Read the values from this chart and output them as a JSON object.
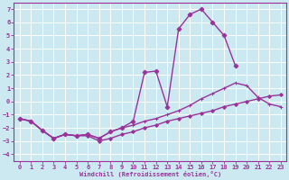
{
  "xlabel": "Windchill (Refroidissement éolien,°C)",
  "background_color": "#cce8f0",
  "grid_color": "#aaccdd",
  "line_color": "#993399",
  "xlim": [
    -0.5,
    23.5
  ],
  "ylim": [
    -4.5,
    7.5
  ],
  "xticks": [
    0,
    1,
    2,
    3,
    4,
    5,
    6,
    7,
    8,
    9,
    10,
    11,
    12,
    13,
    14,
    15,
    16,
    17,
    18,
    19,
    20,
    21,
    22,
    23
  ],
  "yticks": [
    -4,
    -3,
    -2,
    -1,
    0,
    1,
    2,
    3,
    4,
    5,
    6,
    7
  ],
  "series": [
    {
      "x": [
        0,
        1,
        2,
        3,
        4,
        5,
        6,
        7,
        8,
        9,
        10,
        11,
        12,
        13,
        14,
        15,
        16,
        17,
        18,
        19
      ],
      "y": [
        -1.3,
        -1.5,
        -2.2,
        -2.8,
        -2.5,
        -2.6,
        -2.5,
        -2.8,
        -2.3,
        -2.0,
        -1.5,
        2.2,
        2.3,
        -0.4,
        5.5,
        6.6,
        7.0,
        6.0,
        5.0,
        2.7
      ],
      "marker": "D",
      "markersize": 2.5,
      "linewidth": 1.0,
      "linestyle": "-"
    },
    {
      "x": [
        0,
        1,
        2,
        3,
        4,
        5,
        6,
        7,
        8,
        9,
        10,
        11,
        12,
        13,
        14,
        15,
        16,
        17,
        18,
        19,
        20,
        21,
        22,
        23
      ],
      "y": [
        -1.3,
        -1.5,
        -2.2,
        -2.8,
        -2.5,
        -2.6,
        -2.5,
        -2.8,
        -2.3,
        -2.0,
        -1.8,
        -1.5,
        -1.3,
        -1.0,
        -0.7,
        -0.3,
        0.2,
        0.6,
        1.0,
        1.4,
        1.2,
        0.3,
        -0.2,
        -0.4
      ],
      "marker": "+",
      "markersize": 3.5,
      "linewidth": 1.0,
      "linestyle": "-"
    },
    {
      "x": [
        0,
        1,
        2,
        3,
        4,
        5,
        6,
        7,
        8,
        9,
        10,
        11,
        12,
        13,
        14,
        15,
        16,
        17,
        18,
        19,
        20,
        21,
        22,
        23
      ],
      "y": [
        -1.3,
        -1.5,
        -2.2,
        -2.8,
        -2.5,
        -2.6,
        -2.6,
        -3.0,
        -2.8,
        -2.5,
        -2.3,
        -2.0,
        -1.8,
        -1.5,
        -1.3,
        -1.1,
        -0.9,
        -0.7,
        -0.4,
        -0.2,
        0.0,
        0.2,
        0.4,
        0.5
      ],
      "marker": "D",
      "markersize": 2.0,
      "linewidth": 1.0,
      "linestyle": "-"
    }
  ]
}
